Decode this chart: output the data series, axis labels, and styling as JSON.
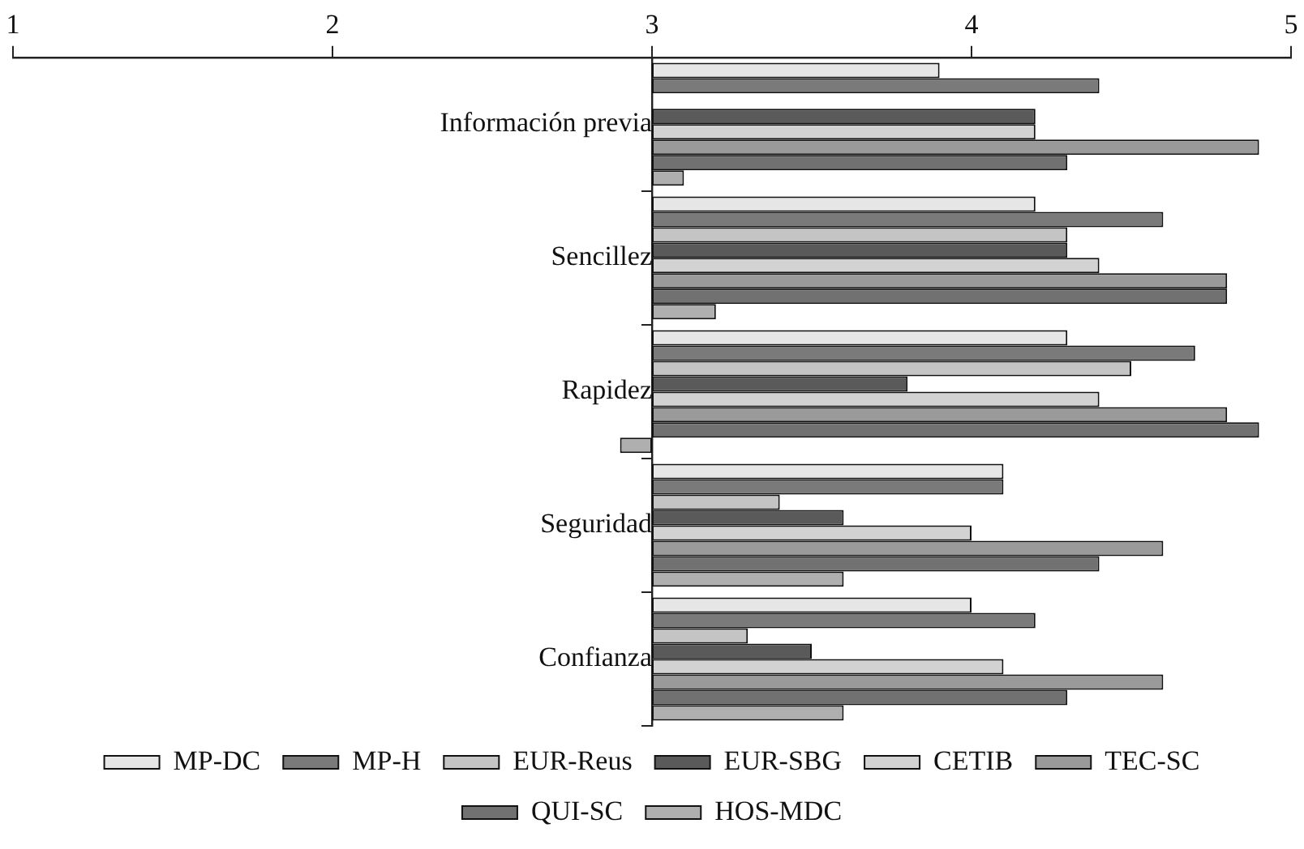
{
  "chart_data": {
    "type": "bar",
    "orientation": "horizontal",
    "categories": [
      "Información previa",
      "Sencillez",
      "Rapidez",
      "Seguridad",
      "Confianza"
    ],
    "series": [
      {
        "name": "MP-DC",
        "color": "#e6e6e6",
        "base": [
          3,
          3,
          3,
          3,
          3
        ],
        "values": [
          0.9,
          1.2,
          1.3,
          1.1,
          1.0
        ]
      },
      {
        "name": "MP-H",
        "color": "#7a7a7a",
        "base": [
          3,
          3,
          3,
          3,
          3
        ],
        "values": [
          1.4,
          1.6,
          1.7,
          1.1,
          1.2
        ]
      },
      {
        "name": "EUR-Reus",
        "color": "#c4c4c4",
        "base": [
          null,
          3,
          3,
          3,
          3
        ],
        "values": [
          null,
          1.3,
          1.5,
          0.4,
          0.3
        ]
      },
      {
        "name": "EUR-SBG",
        "color": "#5a5a5a",
        "base": [
          3,
          3,
          3,
          3,
          3
        ],
        "values": [
          1.2,
          1.3,
          0.8,
          0.6,
          0.5
        ]
      },
      {
        "name": "CETIB",
        "color": "#d2d2d2",
        "base": [
          3,
          3,
          3,
          3,
          3
        ],
        "values": [
          1.2,
          1.4,
          1.4,
          1.0,
          1.1
        ]
      },
      {
        "name": "TEC-SC",
        "color": "#9a9a9a",
        "base": [
          3,
          3,
          3,
          3,
          3
        ],
        "values": [
          1.9,
          1.8,
          1.8,
          1.6,
          1.6
        ]
      },
      {
        "name": "QUI-SC",
        "color": "#717171",
        "base": [
          3,
          3,
          3,
          3,
          3
        ],
        "values": [
          1.3,
          1.8,
          1.9,
          1.4,
          1.3
        ]
      },
      {
        "name": "HOS-MDC",
        "color": "#afafaf",
        "base": [
          3,
          3,
          3,
          3,
          3
        ],
        "values": [
          0.1,
          0.2,
          -0.1,
          0.6,
          0.6
        ]
      }
    ],
    "xlim": [
      1,
      5
    ],
    "xticks": [
      1,
      2,
      3,
      4,
      5
    ],
    "legend": "bottom"
  }
}
